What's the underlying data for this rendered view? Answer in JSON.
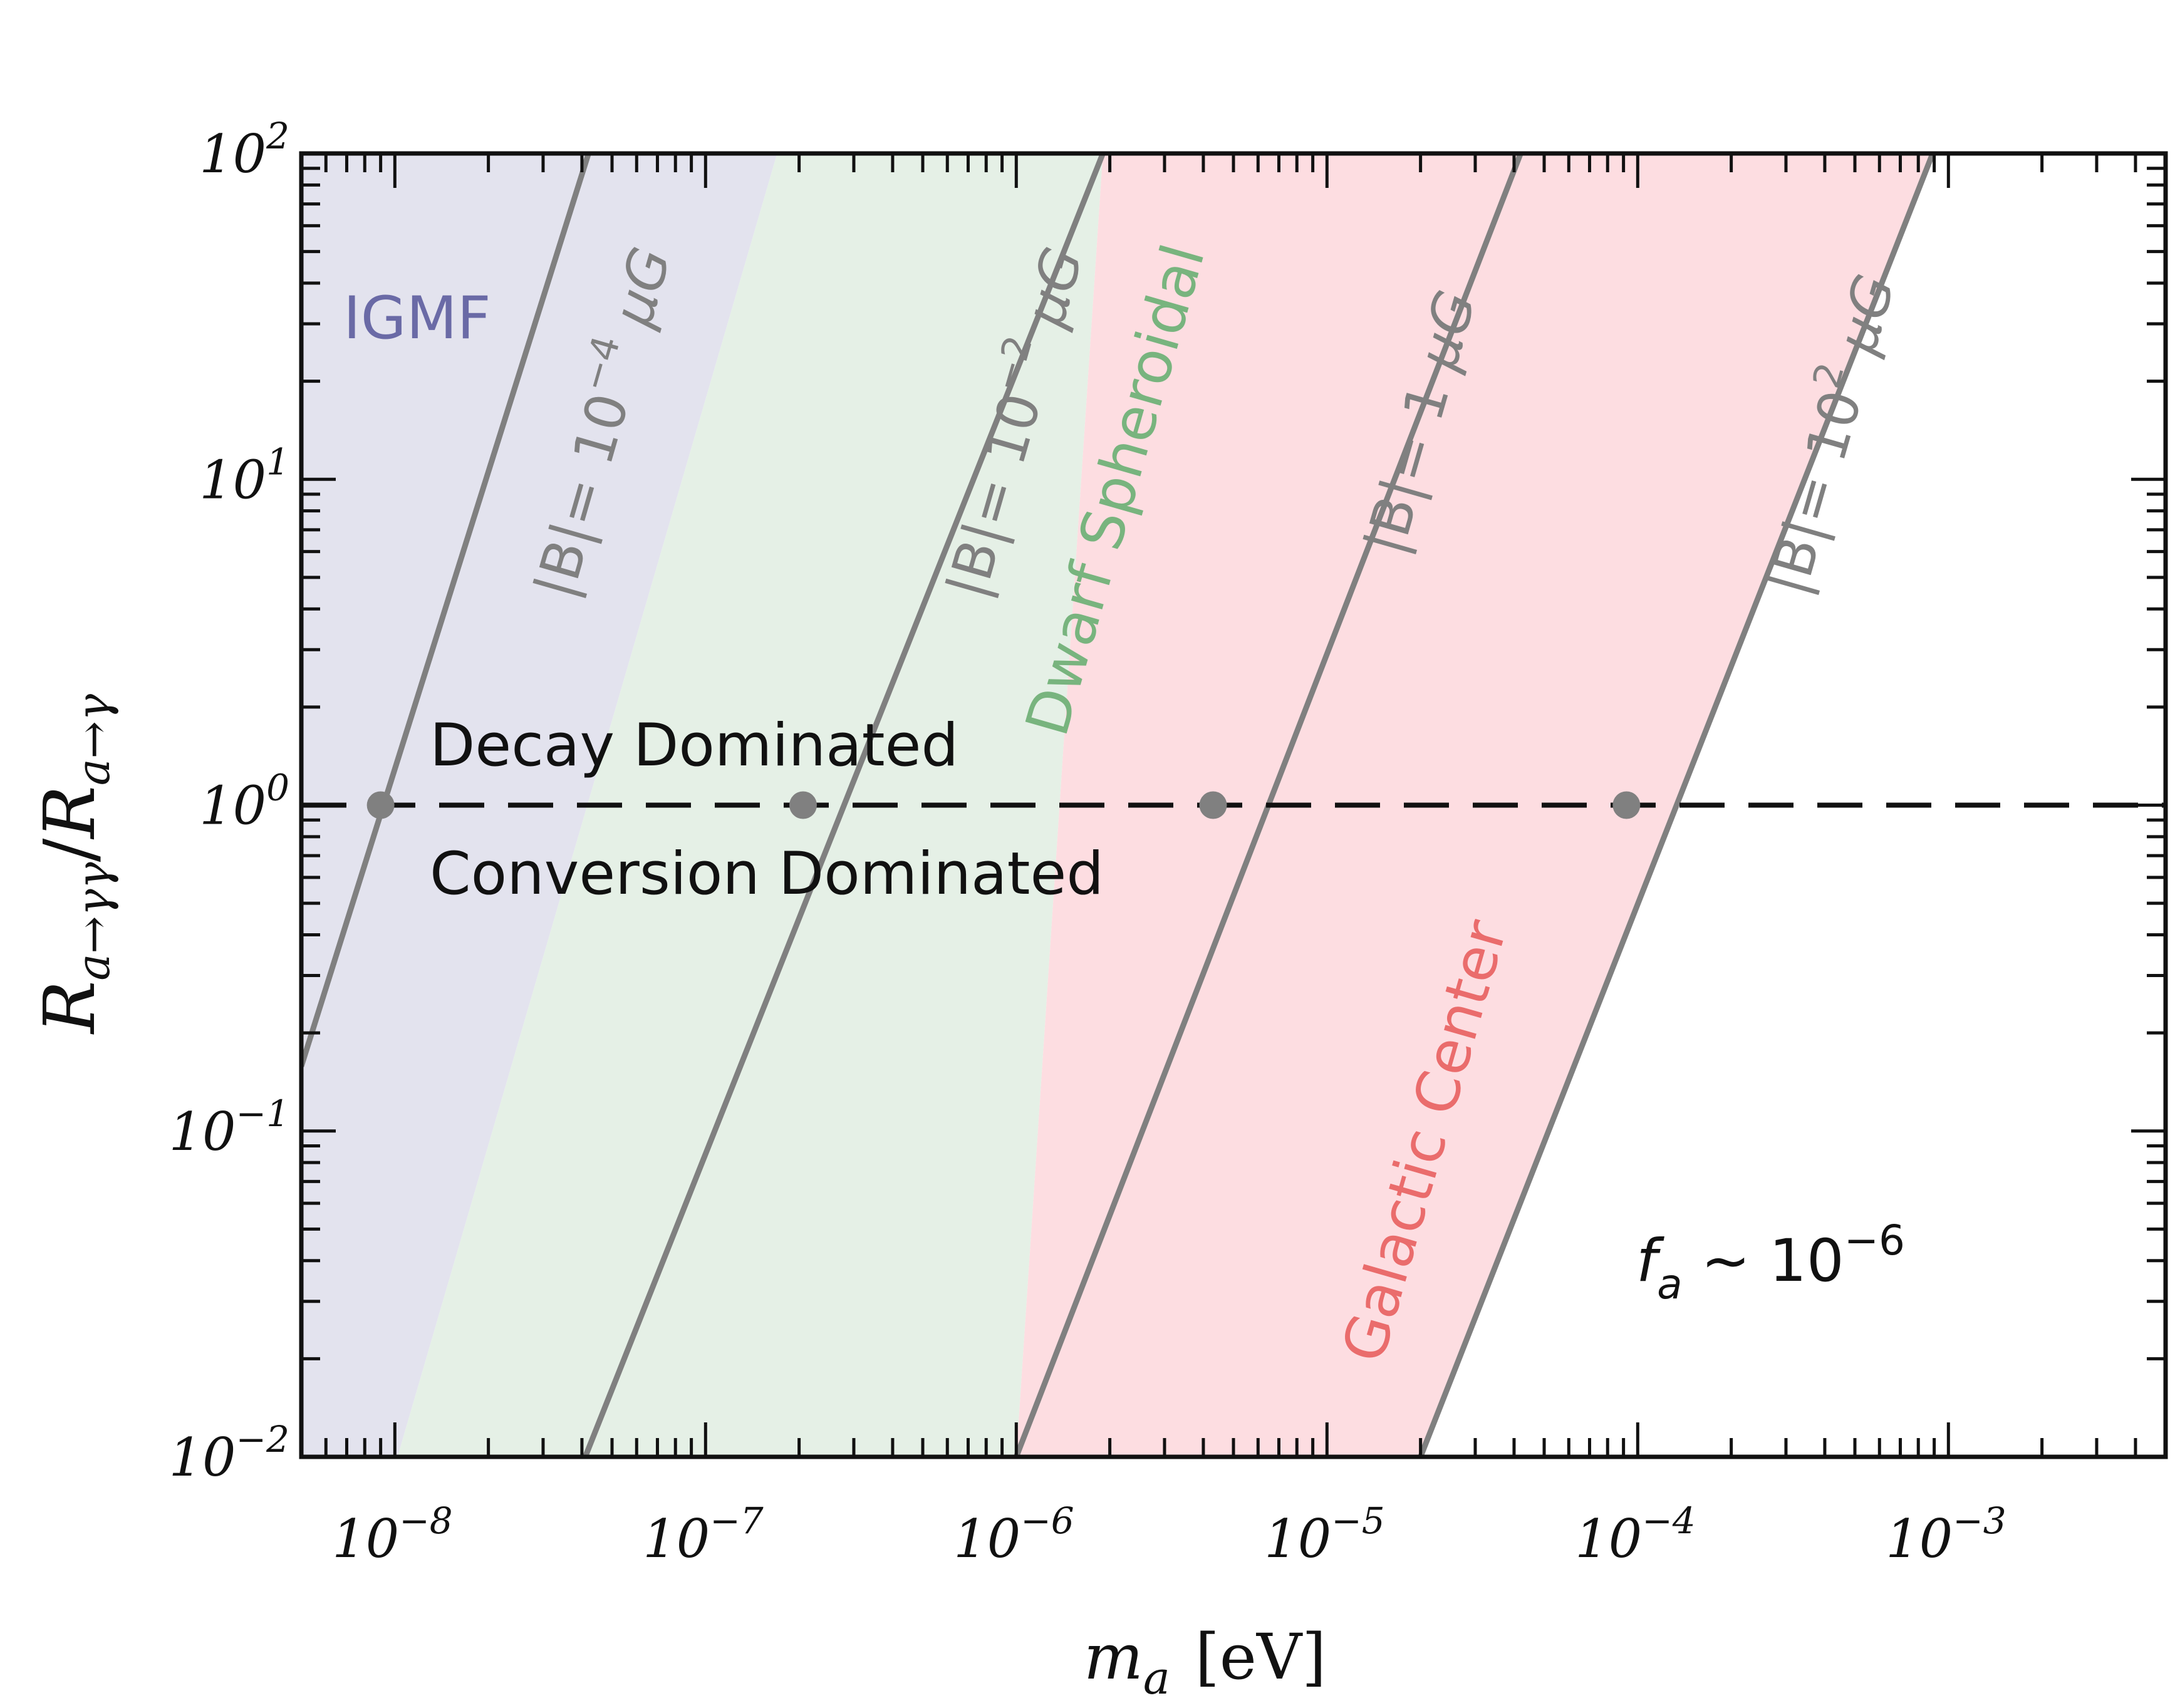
{
  "chart_data": {
    "type": "line",
    "title": "",
    "xscale": "log",
    "yscale": "log",
    "xlim": [
      5e-09,
      0.005
    ],
    "ylim": [
      0.01,
      100
    ],
    "xlabel": {
      "main": "m",
      "sub": "a",
      "unit": "[eV]"
    },
    "ylabel": {
      "r1": "R",
      "sub1": "a→γγ",
      "slash": "/",
      "r2": "R",
      "sub2": "a→γ"
    },
    "x_ticks": [
      {
        "base": "10",
        "exp": "−8",
        "value": 1e-08
      },
      {
        "base": "10",
        "exp": "−7",
        "value": 1e-07
      },
      {
        "base": "10",
        "exp": "−6",
        "value": 1e-06
      },
      {
        "base": "10",
        "exp": "−5",
        "value": 1e-05
      },
      {
        "base": "10",
        "exp": "−4",
        "value": 0.0001
      },
      {
        "base": "10",
        "exp": "−3",
        "value": 0.001
      }
    ],
    "y_ticks": [
      {
        "base": "10",
        "exp": "−2",
        "value": 0.01
      },
      {
        "base": "10",
        "exp": "−1",
        "value": 0.1
      },
      {
        "base": "10",
        "exp": "0",
        "value": 1
      },
      {
        "base": "10",
        "exp": "1",
        "value": 10
      },
      {
        "base": "10",
        "exp": "2",
        "value": 100
      }
    ],
    "series": [
      {
        "name": "|B|= 10^-4 μG",
        "label_prefix": "|B|= 10",
        "label_exp": "−4",
        "label_unit": "μG",
        "crossing_x": 9e-09,
        "x": [
          5e-09,
          4.2e-08
        ],
        "y": [
          0.158,
          100
        ]
      },
      {
        "name": "|B|= 10^-2 μG",
        "label_prefix": "|B|= 10",
        "label_exp": "−2",
        "label_unit": "μG",
        "crossing_x": 2.06e-07,
        "x": [
          4.1e-08,
          1.9e-06
        ],
        "y": [
          0.01,
          100
        ]
      },
      {
        "name": "|B|= 1 μG",
        "label_prefix": "|B|= 1",
        "label_exp": "",
        "label_unit": "μG",
        "crossing_x": 4.3e-06,
        "x": [
          1e-06,
          4.2e-05
        ],
        "y": [
          0.01,
          100
        ]
      },
      {
        "name": "|B|= 10^2 μG",
        "label_prefix": "|B|= 10",
        "label_exp": "2",
        "label_unit": "μG",
        "crossing_x": 9.2e-05,
        "x": [
          2e-05,
          0.00089
        ],
        "y": [
          0.01,
          100
        ]
      }
    ],
    "regions": [
      {
        "name": "IGMF",
        "label": "IGMF",
        "color": "#e3e3ee",
        "polygon_x": [
          5e-09,
          1.7e-07,
          1.02e-08,
          5e-09
        ],
        "polygon_y": [
          100,
          100,
          0.01,
          0.01
        ]
      },
      {
        "name": "Dwarf Spheroidal",
        "label": "Dwarf Spheroidal",
        "color": "#e5f0e6",
        "polygon_x": [
          1.7e-07,
          1.9e-06,
          1e-06,
          1.02e-08
        ],
        "polygon_y": [
          100,
          100,
          0.01,
          0.01
        ]
      },
      {
        "name": "Galactic Center",
        "label": "Galactic Center",
        "color": "#fddde1",
        "polygon_x": [
          1.9e-06,
          0.00089,
          2e-05,
          1e-06
        ],
        "polygon_y": [
          100,
          100,
          0.01,
          0.01
        ]
      }
    ],
    "reference_line": {
      "y": 1,
      "style": "dashed",
      "color": "#111111"
    },
    "annotations": {
      "decay": "Decay Dominated",
      "conversion": "Conversion Dominated",
      "fa_f": "f",
      "fa_sub": "a",
      "fa_rest": " ~ 10",
      "fa_exp": "−6"
    },
    "colors": {
      "line": "#808080",
      "igmf_text": "#6a6aa6",
      "dwarf_text": "#78b47e",
      "galactic_text": "#ea6c6c",
      "axis": "#111111"
    }
  }
}
